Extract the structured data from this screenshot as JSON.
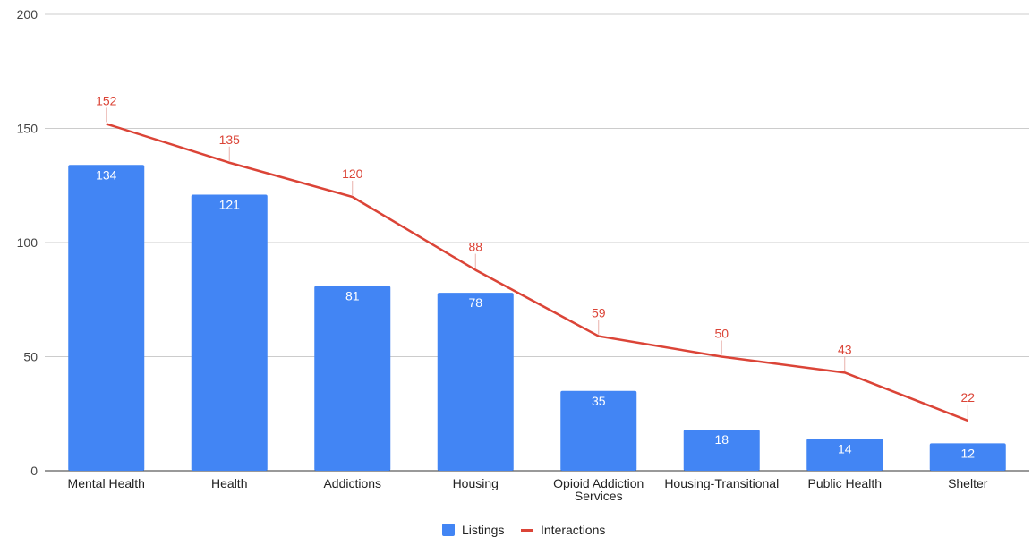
{
  "chart_data": {
    "type": "bar",
    "categories": [
      [
        "Mental Health"
      ],
      [
        "Health"
      ],
      [
        "Addictions"
      ],
      [
        "Housing"
      ],
      [
        "Opioid Addiction",
        "Services"
      ],
      [
        "Housing-Transitional"
      ],
      [
        "Public Health"
      ],
      [
        "Shelter"
      ]
    ],
    "series": [
      {
        "name": "Listings",
        "type": "bar",
        "color": "#4285f4",
        "values": [
          134,
          121,
          81,
          78,
          35,
          18,
          14,
          12
        ]
      },
      {
        "name": "Interactions",
        "type": "line",
        "color": "#db4437",
        "values": [
          152,
          135,
          120,
          88,
          59,
          50,
          43,
          22
        ]
      }
    ],
    "yticks": [
      0,
      50,
      100,
      150,
      200
    ],
    "ylim": [
      0,
      200
    ],
    "grid": true,
    "legend_position": "bottom"
  }
}
